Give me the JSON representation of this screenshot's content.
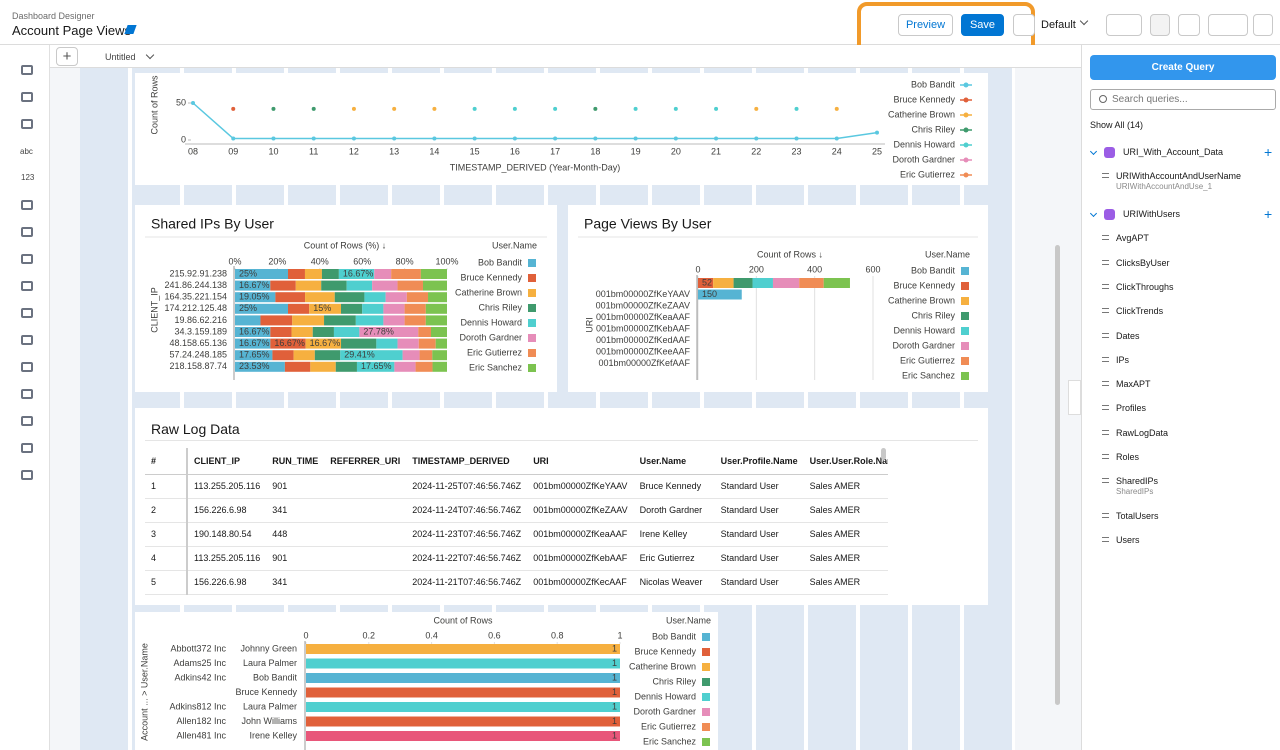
{
  "header": {
    "app_name": "Dashboard Designer",
    "dashboard_title": "Account Page Views",
    "preview": "Preview",
    "save": "Save",
    "layout": "Default"
  },
  "tabs": {
    "add": "+",
    "page": "Untitled"
  },
  "toolbar": {
    "text_widget": "abc",
    "number_widget": "123"
  },
  "queries": {
    "create": "Create Query",
    "search": "Search queries...",
    "show": "Show All (14)",
    "groups": [
      {
        "name": "URI_With_Account_Data",
        "items": [
          {
            "name": "URIWithAccountAndUserName",
            "sub": "URIWithAccountAndUse_1"
          }
        ]
      },
      {
        "name": "URIWithUsers",
        "items": [
          {
            "name": "AvgAPT"
          },
          {
            "name": "ClicksByUser"
          },
          {
            "name": "ClickThroughs"
          },
          {
            "name": "ClickTrends"
          },
          {
            "name": "Dates"
          },
          {
            "name": "IPs"
          },
          {
            "name": "MaxAPT"
          },
          {
            "name": "Profiles"
          },
          {
            "name": "RawLogData"
          },
          {
            "name": "Roles"
          },
          {
            "name": "SharedIPs",
            "sub": "SharedIPs"
          },
          {
            "name": "TotalUsers"
          },
          {
            "name": "Users"
          }
        ]
      }
    ]
  },
  "table": {
    "title": "Raw Log Data",
    "columns": [
      "#",
      "CLIENT_IP",
      "RUN_TIME",
      "REFERRER_URI",
      "TIMESTAMP_DERIVED",
      "URI",
      "User.Name",
      "User.Profile.Name",
      "User.User.Role.Name"
    ],
    "rows": [
      [
        1,
        "113.255.205.116",
        901,
        null,
        "2024-11-25T07:46:56.746Z",
        "001bm00000ZfKeYAAV",
        "Bruce Kennedy",
        "Standard User",
        "Sales AMER"
      ],
      [
        2,
        "156.226.6.98",
        341,
        null,
        "2024-11-24T07:46:56.746Z",
        "001bm00000ZfKeZAAV",
        "Doroth Gardner",
        "Standard User",
        "Sales AMER"
      ],
      [
        3,
        "190.148.80.54",
        448,
        null,
        "2024-11-23T07:46:56.746Z",
        "001bm00000ZfKeaAAF",
        "Irene Kelley",
        "Standard User",
        "Sales AMER"
      ],
      [
        4,
        "113.255.205.116",
        901,
        null,
        "2024-11-22T07:46:56.746Z",
        "001bm00000ZfKebAAF",
        "Eric Gutierrez",
        "Standard User",
        "Sales AMER"
      ],
      [
        5,
        "156.226.6.98",
        341,
        null,
        "2024-11-21T07:46:56.746Z",
        "001bm00000ZfKecAAF",
        "Nicolas Weaver",
        "Standard User",
        "Sales AMER"
      ]
    ]
  },
  "chart_data": [
    {
      "type": "line",
      "categories": [
        "08",
        "09",
        "10",
        "11",
        "12",
        "13",
        "14",
        "15",
        "16",
        "17",
        "18",
        "19",
        "20",
        "21",
        "22",
        "23",
        "24",
        "25"
      ],
      "xlabel": "TIMESTAMP_DERIVED (Year-Month-Day)",
      "ylabel": "Count of Rows",
      "ylim": [
        0,
        90
      ],
      "yticks": [
        0,
        50
      ],
      "series": [
        {
          "name": "Bob Bandit",
          "color": "#5ac8e0",
          "style": "line",
          "values": [
            50,
            2,
            2,
            2,
            2,
            2,
            2,
            2,
            2,
            2,
            2,
            2,
            2,
            2,
            2,
            2,
            2,
            10
          ]
        },
        {
          "name": "Bruce Kennedy",
          "color": "#e0603a",
          "style": "markers",
          "values": [
            null,
            42,
            null,
            null,
            null,
            null,
            null,
            null,
            null,
            null,
            null,
            null,
            null,
            null,
            null,
            null,
            null,
            null
          ]
        },
        {
          "name": "Catherine Brown",
          "color": "#f6b040",
          "style": "markers",
          "values": [
            null,
            null,
            null,
            null,
            42,
            42,
            42,
            null,
            null,
            null,
            null,
            null,
            null,
            null,
            42,
            null,
            42,
            null
          ]
        },
        {
          "name": "Chris Riley",
          "color": "#3f9a6d",
          "style": "markers",
          "values": [
            null,
            null,
            42,
            42,
            null,
            null,
            null,
            null,
            null,
            null,
            42,
            null,
            null,
            null,
            null,
            null,
            null,
            null
          ]
        },
        {
          "name": "Dennis Howard",
          "color": "#4fcfcf",
          "style": "markers",
          "values": [
            null,
            null,
            null,
            null,
            null,
            null,
            null,
            42,
            42,
            42,
            null,
            42,
            42,
            42,
            null,
            42,
            null,
            null
          ]
        },
        {
          "name": "Doroth Gardner",
          "color": "#e68db9",
          "style": "markers",
          "values": [
            null,
            null,
            null,
            null,
            null,
            null,
            null,
            null,
            null,
            null,
            null,
            null,
            null,
            null,
            null,
            null,
            null,
            null
          ]
        },
        {
          "name": "Eric Gutierrez",
          "color": "#f08c55",
          "style": "markers",
          "values": [
            null,
            null,
            null,
            null,
            null,
            null,
            null,
            null,
            null,
            null,
            null,
            null,
            null,
            null,
            null,
            null,
            null,
            null
          ]
        }
      ]
    },
    {
      "type": "bar",
      "title": "Shared IPs By User",
      "horizontal": true,
      "stacked": true,
      "xlabel": "Count of Rows (%) ↓",
      "ylabel": "CLIENT_IP",
      "legend_title": "User.Name",
      "categories": [
        "215.92.91.238",
        "241.86.244.138",
        "164.35.221.154",
        "174.212.125.48",
        "19.86.62.216",
        "34.3.159.189",
        "48.158.65.136",
        "57.24.248.185",
        "218.158.87.74"
      ],
      "xlim": [
        0,
        100
      ],
      "xticks": [
        {
          "value": 0,
          "label": "0%"
        },
        {
          "value": 20,
          "label": "20%"
        },
        {
          "value": 40,
          "label": "40%"
        },
        {
          "value": 60,
          "label": "60%"
        },
        {
          "value": 80,
          "label": "80%"
        },
        {
          "value": 100,
          "label": "100%"
        }
      ],
      "series": [
        {
          "name": "Bob Bandit",
          "color": "#56b4d3",
          "values": [
            25,
            16.67,
            19.05,
            25,
            12,
            16.67,
            16.67,
            17.65,
            23.53
          ],
          "value_labels": [
            "25%",
            "16.67%",
            "19.05%",
            "25%",
            null,
            "16.67%",
            "16.67%",
            "17.65%",
            "23.53%"
          ]
        },
        {
          "name": "Bruce Kennedy",
          "color": "#e0603a",
          "values": [
            8,
            12,
            14,
            10,
            15,
            10,
            16.67,
            10,
            12
          ],
          "value_labels": [
            null,
            null,
            null,
            null,
            null,
            null,
            "16.67%",
            null,
            null
          ]
        },
        {
          "name": "Catherine Brown",
          "color": "#f6b040",
          "values": [
            8,
            12,
            14,
            15,
            15,
            10,
            16.67,
            10,
            12
          ],
          "value_labels": [
            null,
            null,
            null,
            "15%",
            null,
            null,
            "16.67%",
            null,
            null
          ]
        },
        {
          "name": "Chris Riley",
          "color": "#3f9a6d",
          "values": [
            8,
            12,
            14,
            10,
            15,
            10,
            16.67,
            12,
            10
          ]
        },
        {
          "name": "Dennis Howard",
          "color": "#4fcfcf",
          "values": [
            16.67,
            12,
            10,
            10,
            13,
            12,
            10,
            29.41,
            17.65
          ],
          "value_labels": [
            "16.67%",
            null,
            null,
            null,
            null,
            null,
            null,
            "29.41%",
            "17.65%"
          ]
        },
        {
          "name": "Doroth Gardner",
          "color": "#e68db9",
          "values": [
            8,
            12,
            10,
            10,
            10,
            27.78,
            10,
            8,
            10
          ],
          "value_labels": [
            null,
            null,
            null,
            null,
            null,
            "27.78%",
            null,
            null,
            null
          ]
        },
        {
          "name": "Eric Gutierrez",
          "color": "#f08c55",
          "values": [
            14,
            12,
            10,
            10,
            10,
            6,
            8,
            6,
            8
          ]
        },
        {
          "name": "Eric Sanchez",
          "color": "#7cc350",
          "values": [
            12.33,
            11.33,
            8.95,
            10,
            10,
            7.55,
            5.32,
            6.94,
            6.82
          ]
        }
      ]
    },
    {
      "type": "bar",
      "title": "Page Views By User",
      "horizontal": true,
      "stacked": true,
      "grid": true,
      "xlabel": "Count of Rows ↓",
      "ylabel": "URI",
      "legend_title": "User.Name",
      "categories": [
        null,
        "001bm00000ZfKeYAAV",
        "001bm00000ZfKeZAAV",
        "001bm00000ZfKeaAAF",
        "001bm00000ZfKebAAF",
        "001bm00000ZfKedAAF",
        "001bm00000ZfKeeAAF",
        "001bm00000ZfKefAAF"
      ],
      "xlim": [
        0,
        600
      ],
      "xticks": [
        0,
        200,
        400,
        600
      ],
      "series": [
        {
          "name": "Bob Bandit",
          "color": "#56b4d3",
          "values": [
            null,
            150,
            null,
            null,
            null,
            null,
            null,
            null
          ],
          "value_labels": [
            null,
            "150",
            null,
            null,
            null,
            null,
            null,
            null
          ]
        },
        {
          "name": "Bruce Kennedy",
          "color": "#e0603a",
          "values": [
            52,
            null,
            null,
            null,
            null,
            null,
            null,
            null
          ],
          "value_labels": [
            "52",
            null,
            null,
            null,
            null,
            null,
            null,
            null
          ]
        },
        {
          "name": "Catherine Brown",
          "color": "#f6b040",
          "values": [
            70,
            null,
            null,
            null,
            null,
            null,
            null,
            null
          ]
        },
        {
          "name": "Chris Riley",
          "color": "#3f9a6d",
          "values": [
            65,
            null,
            null,
            null,
            null,
            null,
            null,
            null
          ]
        },
        {
          "name": "Dennis Howard",
          "color": "#4fcfcf",
          "values": [
            70,
            null,
            null,
            null,
            null,
            null,
            null,
            null
          ]
        },
        {
          "name": "Doroth Gardner",
          "color": "#e68db9",
          "values": [
            90,
            null,
            null,
            null,
            null,
            null,
            null,
            null
          ]
        },
        {
          "name": "Eric Gutierrez",
          "color": "#f08c55",
          "values": [
            84,
            null,
            null,
            null,
            null,
            null,
            null,
            null
          ]
        },
        {
          "name": "Eric Sanchez",
          "color": "#7cc350",
          "values": [
            90,
            null,
            null,
            null,
            null,
            null,
            null,
            null
          ]
        }
      ]
    },
    {
      "type": "bar",
      "horizontal": true,
      "xlabel": "Count of Rows",
      "ylabel": "Account ... > User.Name",
      "legend_title": "User.Name",
      "groups": [
        "Abbott372 Inc",
        "Adams25 Inc",
        "Adkins42 Inc",
        null,
        "Adkins812 Inc",
        "Allen182 Inc",
        "Allen481 Inc"
      ],
      "categories": [
        "Johnny Green",
        "Laura Palmer",
        "Bob Bandit",
        "Bruce Kennedy",
        "Laura Palmer",
        "John Williams",
        "Irene Kelley"
      ],
      "values": [
        1,
        1,
        1,
        1,
        1,
        1,
        1
      ],
      "colors": [
        "#f6b040",
        "#4fcfcf",
        "#56b4d3",
        "#e0603a",
        "#4fcfcf",
        "#e0603a",
        "#e8577a"
      ],
      "xlim": [
        0,
        1
      ],
      "xticks": [
        0,
        0.2,
        0.4,
        0.6,
        0.8,
        1
      ],
      "legend": [
        {
          "name": "Bob Bandit",
          "color": "#56b4d3"
        },
        {
          "name": "Bruce Kennedy",
          "color": "#e0603a"
        },
        {
          "name": "Catherine Brown",
          "color": "#f6b040"
        },
        {
          "name": "Chris Riley",
          "color": "#3f9a6d"
        },
        {
          "name": "Dennis Howard",
          "color": "#4fcfcf"
        },
        {
          "name": "Doroth Gardner",
          "color": "#e68db9"
        },
        {
          "name": "Eric Gutierrez",
          "color": "#f08c55"
        },
        {
          "name": "Eric Sanchez",
          "color": "#7cc350"
        }
      ]
    }
  ]
}
